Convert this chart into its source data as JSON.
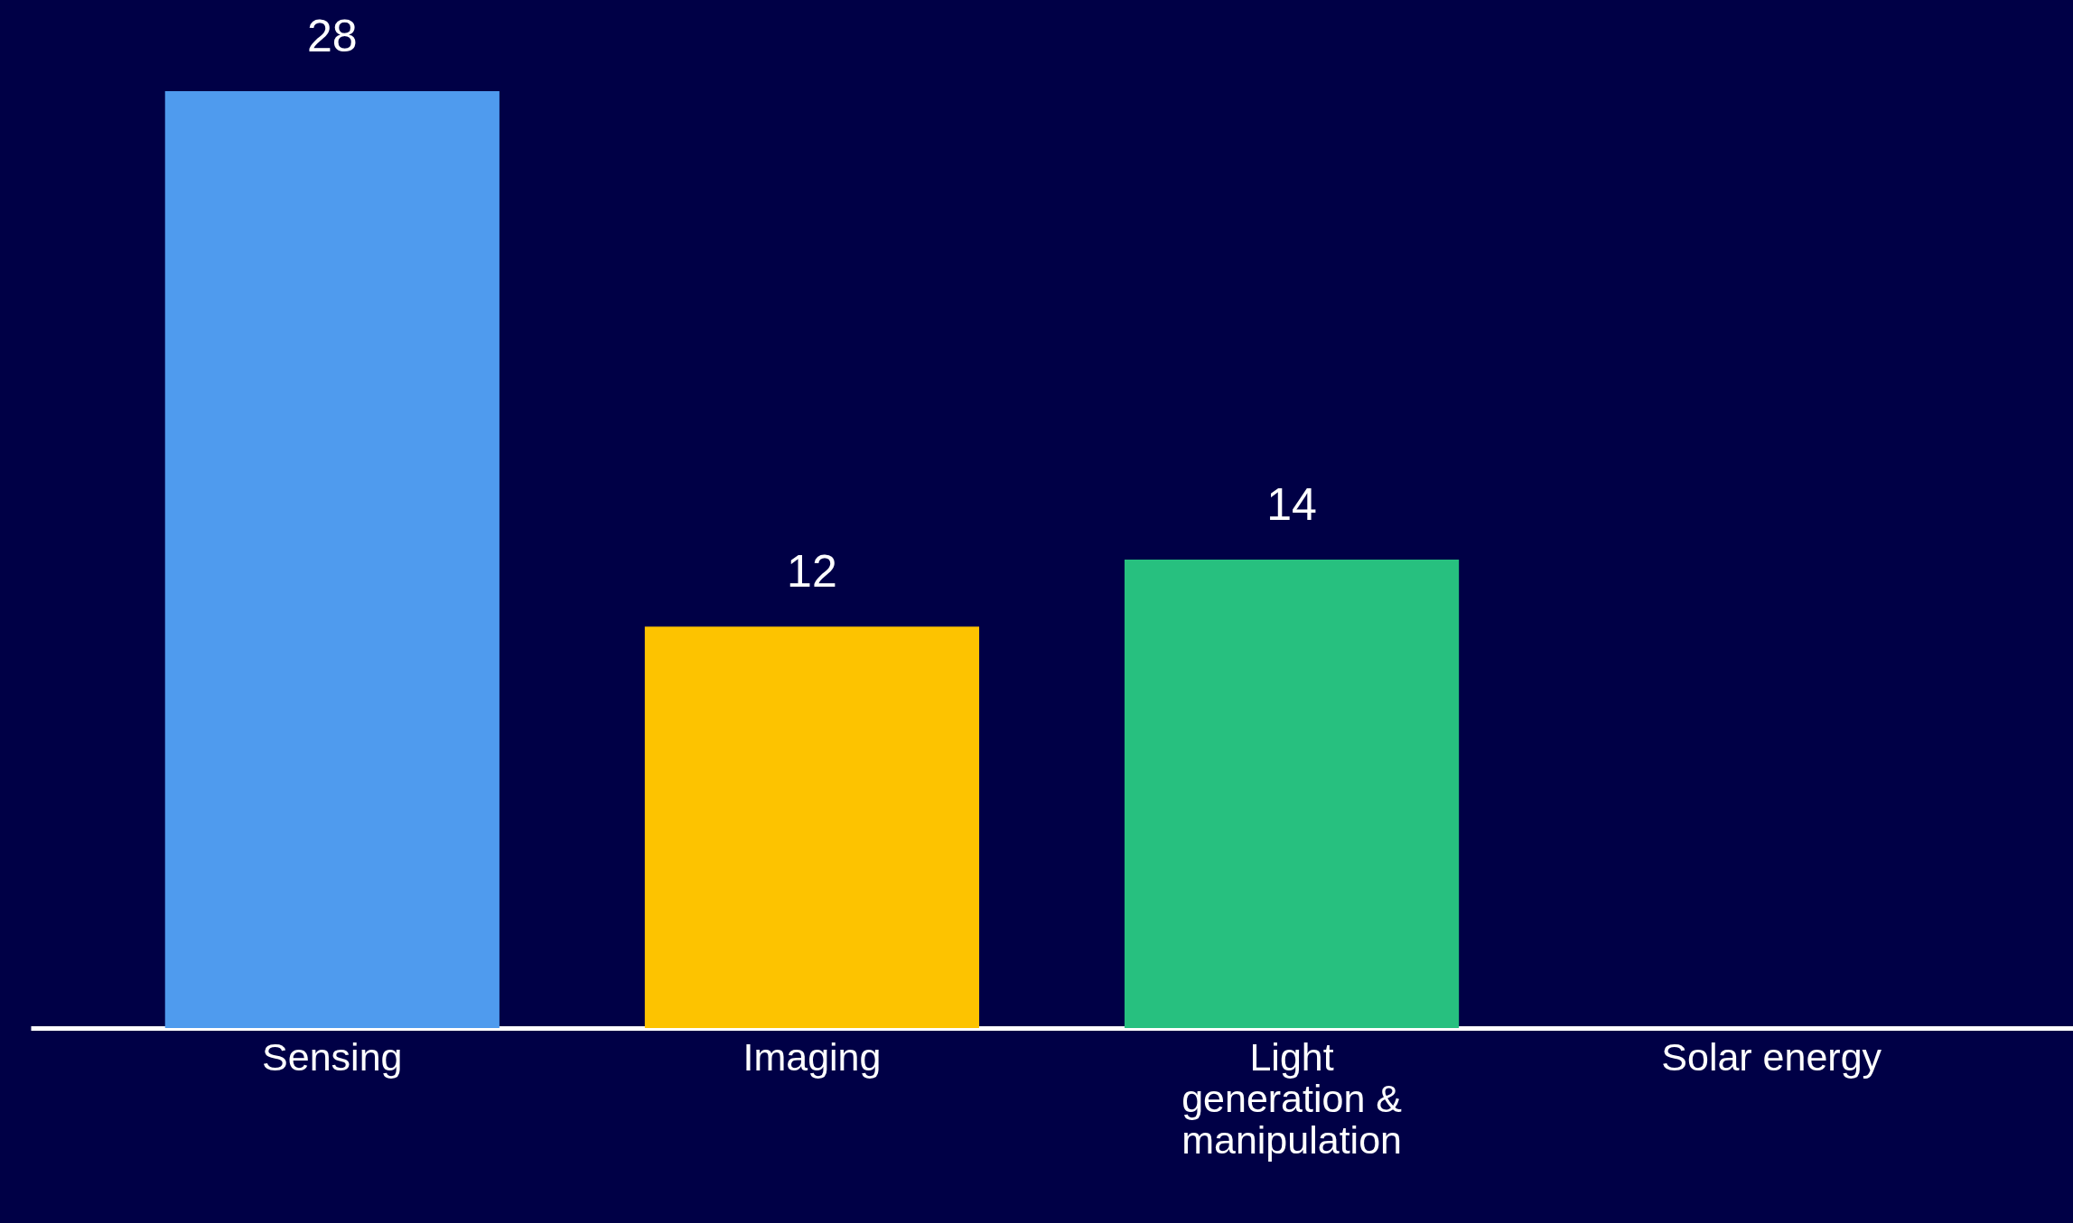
{
  "chart_data": {
    "type": "bar",
    "categories": [
      "Sensing",
      "Imaging",
      "Light generation & manipulation",
      "Solar energy"
    ],
    "values": [
      28,
      12,
      14,
      null
    ],
    "colors": [
      "#4f9bee",
      "#fdc300",
      "#27c07f",
      "#27c07f"
    ],
    "ylim": [
      0,
      28
    ],
    "data_labels": true,
    "tick_labels": "x"
  }
}
